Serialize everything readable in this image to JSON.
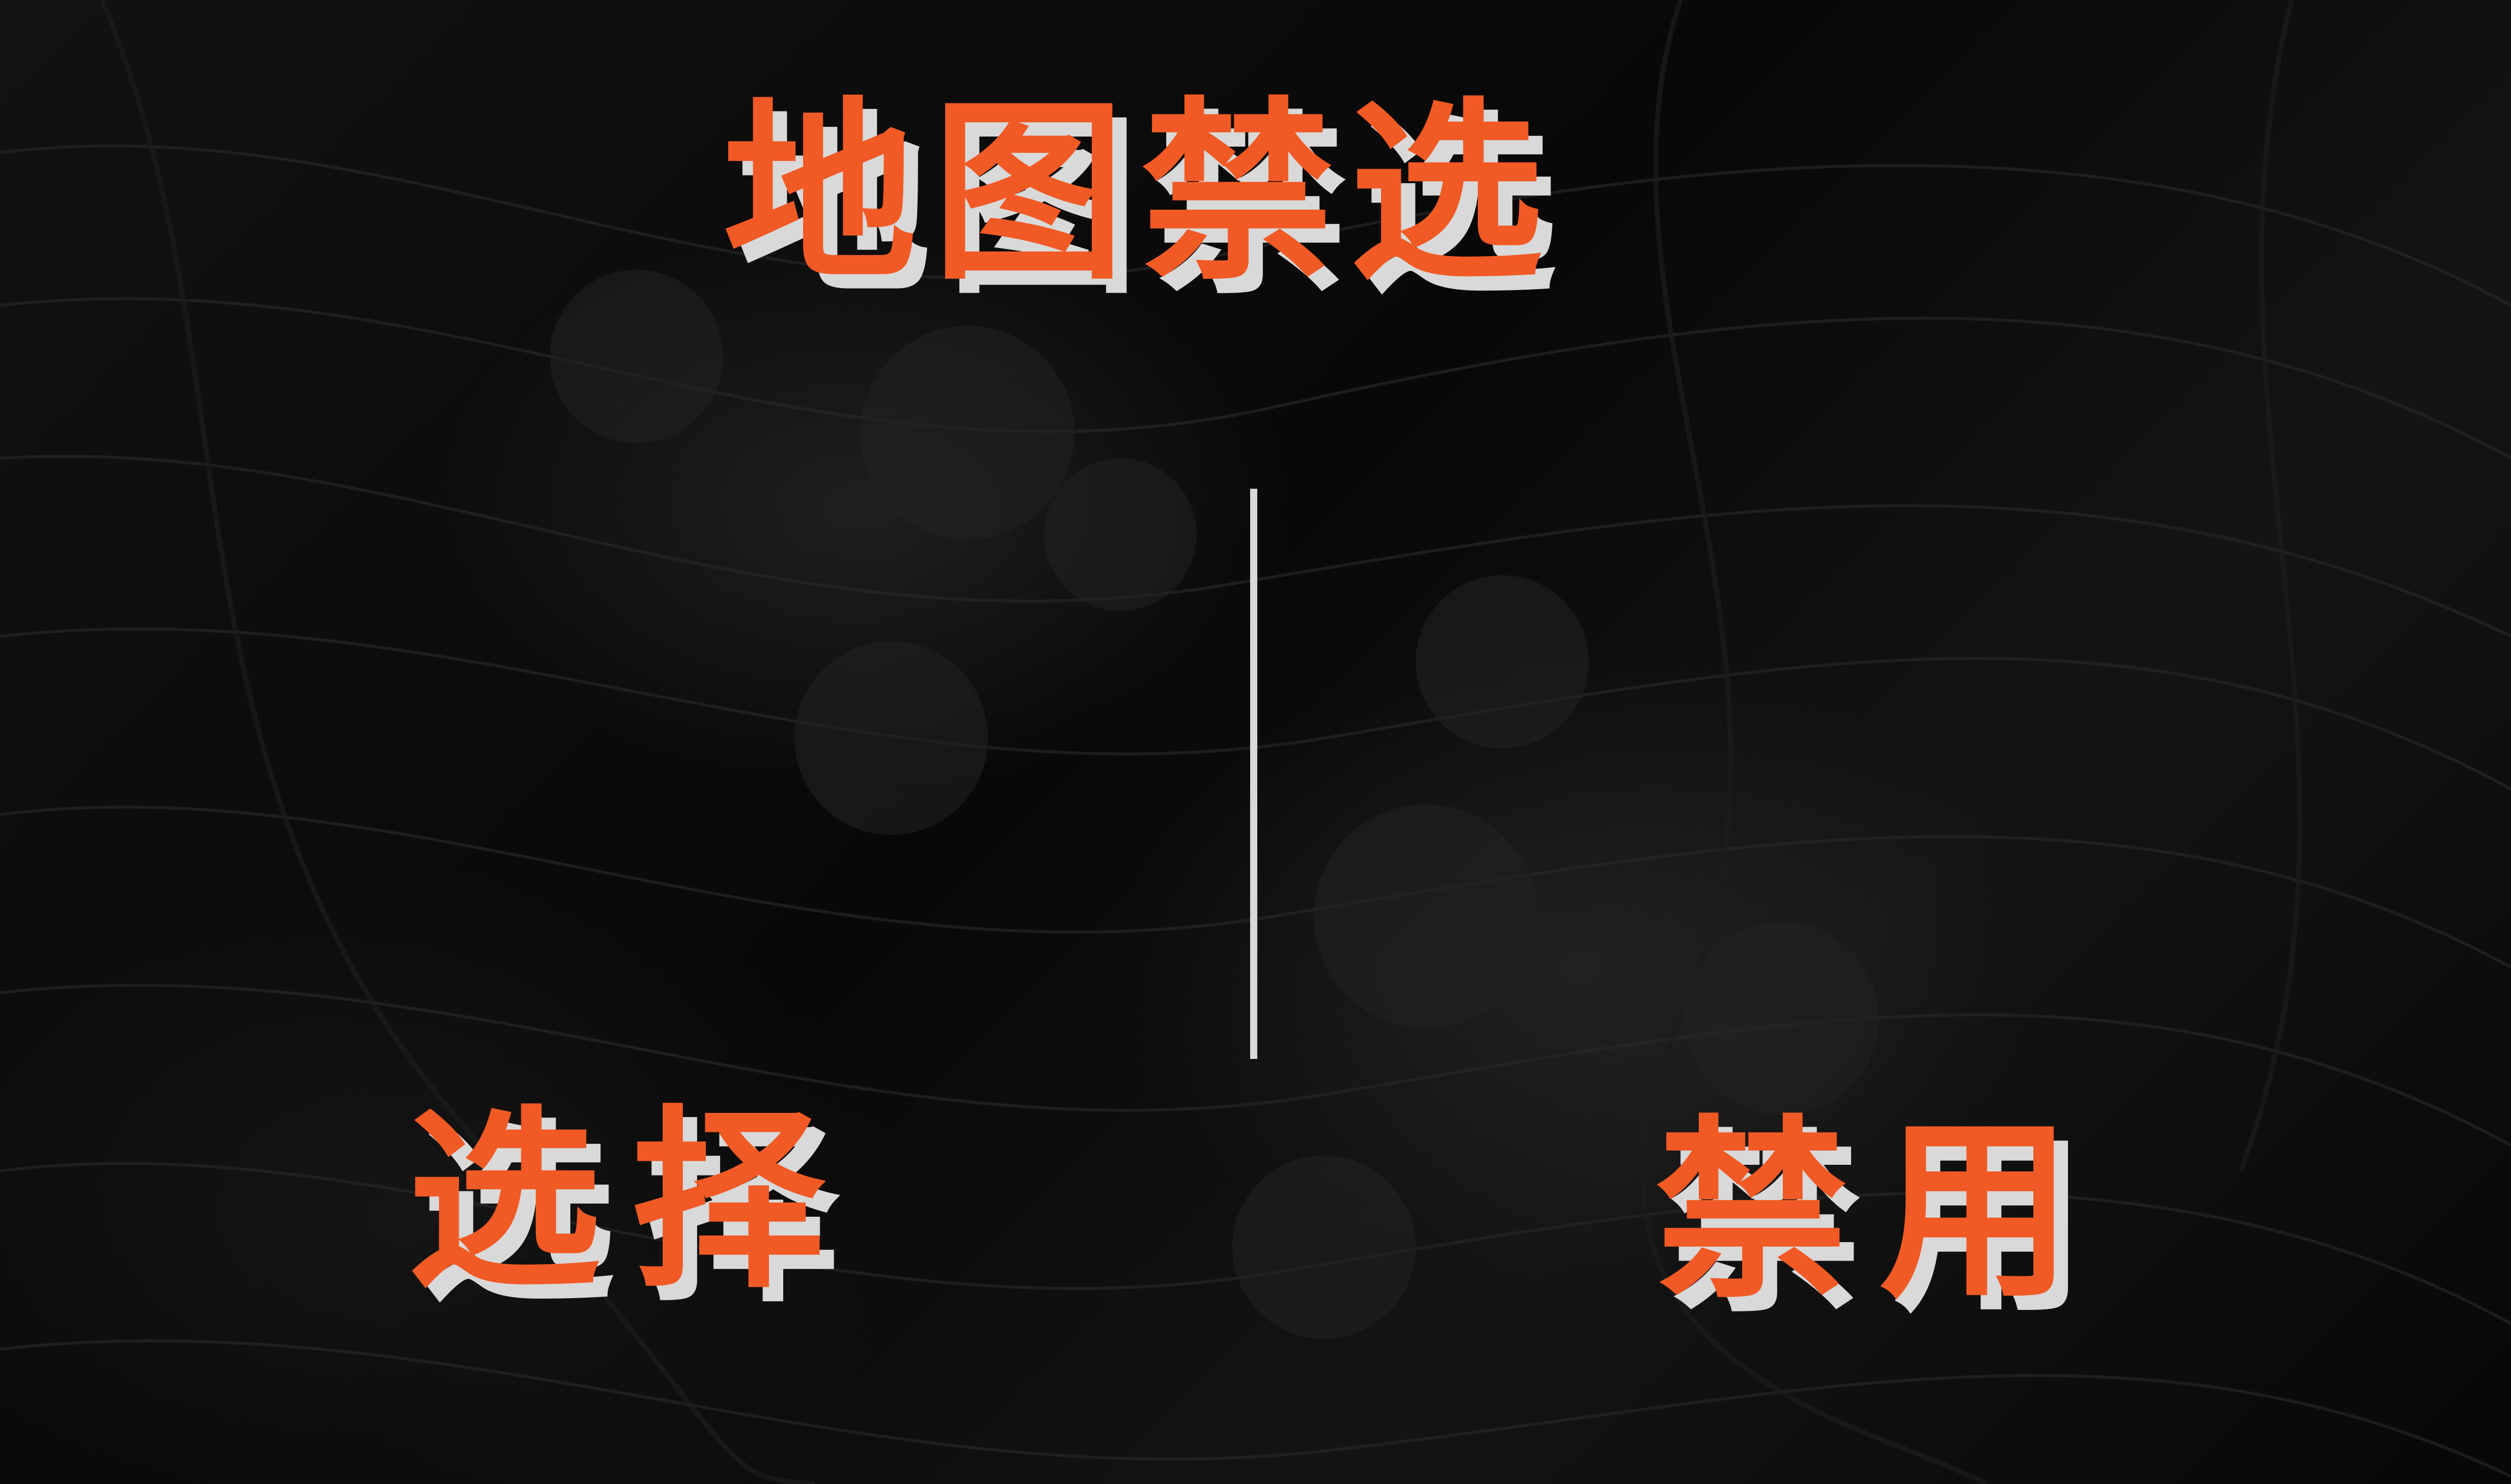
{
  "title": "地图禁选",
  "options": {
    "select_label": "选择",
    "ban_label": "禁用"
  },
  "colors": {
    "accent": "#f15a25",
    "shadow": "#d9d9d9",
    "background": "#0b0b0b"
  }
}
